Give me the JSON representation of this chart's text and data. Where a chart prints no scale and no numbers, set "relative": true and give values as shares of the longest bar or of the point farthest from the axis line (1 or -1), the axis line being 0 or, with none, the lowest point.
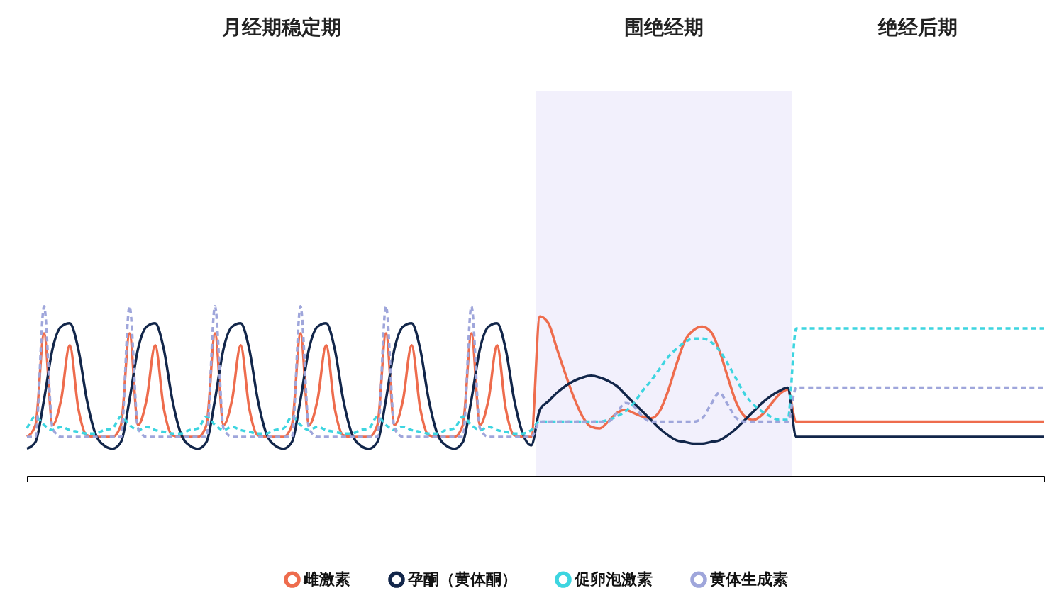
{
  "chart_data": {
    "type": "line",
    "relative": true,
    "grid": false,
    "tick_labels": false,
    "legend": "bottom",
    "annotations": [
      "月经期稳定期",
      "围绝经期",
      "绝经后期"
    ],
    "categories": [
      null,
      null,
      null,
      null,
      null,
      null,
      null,
      null,
      null,
      null,
      null,
      null,
      null,
      null,
      null,
      null,
      null,
      null,
      null,
      null,
      null,
      null,
      null,
      null,
      null,
      null,
      null,
      null,
      null,
      null,
      null,
      null,
      null,
      null,
      null,
      null,
      null,
      null,
      null,
      null,
      null,
      null,
      null,
      null,
      null,
      null,
      null,
      null,
      null,
      null,
      null,
      null,
      null,
      null,
      null,
      null,
      null,
      null,
      null,
      null,
      null,
      null,
      null,
      null,
      null,
      null,
      null,
      null,
      null,
      null,
      null,
      null,
      null,
      null,
      null,
      null,
      null,
      null,
      null,
      null,
      null,
      null,
      null,
      null,
      null,
      null,
      null,
      null,
      null,
      null,
      null,
      null,
      null,
      null,
      null,
      null,
      null,
      null,
      null,
      null,
      null,
      null,
      null,
      null,
      null,
      null,
      null,
      null,
      null,
      null,
      null,
      null,
      null,
      null,
      null,
      null,
      null,
      null,
      null,
      null
    ],
    "series": [
      {
        "name": "雌激素",
        "color": "#ee6c4d",
        "line_style": "solid",
        "values": [
          0.23,
          0.3,
          0.84,
          0.3,
          0.45,
          0.77,
          0.4,
          0.24,
          0.23,
          0.23,
          0.23,
          0.3,
          0.84,
          0.3,
          0.45,
          0.77,
          0.4,
          0.24,
          0.23,
          0.23,
          0.23,
          0.3,
          0.84,
          0.3,
          0.45,
          0.77,
          0.4,
          0.24,
          0.23,
          0.23,
          0.23,
          0.3,
          0.84,
          0.3,
          0.45,
          0.77,
          0.4,
          0.24,
          0.23,
          0.23,
          0.23,
          0.3,
          0.84,
          0.3,
          0.45,
          0.77,
          0.4,
          0.24,
          0.23,
          0.23,
          0.23,
          0.3,
          0.84,
          0.3,
          0.45,
          0.77,
          0.4,
          0.24,
          0.23,
          0.23,
          0.94,
          0.9,
          0.75,
          0.6,
          0.46,
          0.35,
          0.29,
          0.28,
          0.32,
          0.37,
          0.39,
          0.37,
          0.35,
          0.34,
          0.38,
          0.5,
          0.66,
          0.8,
          0.86,
          0.88,
          0.85,
          0.74,
          0.58,
          0.43,
          0.35,
          0.33,
          0.36,
          0.42,
          0.48,
          0.51,
          0.32,
          0.32,
          0.32,
          0.32,
          0.32,
          0.32,
          0.32,
          0.32,
          0.32,
          0.32,
          0.32,
          0.32,
          0.32,
          0.32,
          0.32,
          0.32,
          0.32,
          0.32,
          0.32,
          0.32,
          0.32,
          0.32,
          0.32,
          0.32,
          0.32,
          0.32,
          0.32,
          0.32,
          0.32,
          0.32
        ]
      },
      {
        "name": "孕酮（黄体酮）",
        "color": "#12264a",
        "line_style": "solid",
        "values": [
          0.16,
          0.2,
          0.45,
          0.75,
          0.88,
          0.9,
          0.75,
          0.45,
          0.25,
          0.18,
          0.16,
          0.2,
          0.45,
          0.75,
          0.88,
          0.9,
          0.75,
          0.45,
          0.25,
          0.18,
          0.16,
          0.2,
          0.45,
          0.75,
          0.88,
          0.9,
          0.75,
          0.45,
          0.25,
          0.18,
          0.16,
          0.2,
          0.45,
          0.75,
          0.88,
          0.9,
          0.75,
          0.45,
          0.25,
          0.18,
          0.16,
          0.2,
          0.45,
          0.75,
          0.88,
          0.9,
          0.75,
          0.45,
          0.25,
          0.18,
          0.16,
          0.2,
          0.45,
          0.75,
          0.88,
          0.9,
          0.75,
          0.45,
          0.25,
          0.18,
          0.39,
          0.44,
          0.49,
          0.53,
          0.56,
          0.58,
          0.59,
          0.58,
          0.56,
          0.53,
          0.48,
          0.43,
          0.38,
          0.33,
          0.28,
          0.24,
          0.21,
          0.2,
          0.19,
          0.19,
          0.2,
          0.21,
          0.24,
          0.28,
          0.33,
          0.38,
          0.43,
          0.47,
          0.5,
          0.52,
          0.23,
          0.23,
          0.23,
          0.23,
          0.23,
          0.23,
          0.23,
          0.23,
          0.23,
          0.23,
          0.23,
          0.23,
          0.23,
          0.23,
          0.23,
          0.23,
          0.23,
          0.23,
          0.23,
          0.23,
          0.23,
          0.23,
          0.23,
          0.23,
          0.23,
          0.23,
          0.23,
          0.23,
          0.23,
          0.23
        ]
      },
      {
        "name": "促卵泡激素",
        "color": "#3dd5e0",
        "line_style": "dashed",
        "values": [
          0.28,
          0.35,
          0.3,
          0.27,
          0.29,
          0.27,
          0.26,
          0.25,
          0.25,
          0.27,
          0.28,
          0.35,
          0.3,
          0.27,
          0.29,
          0.27,
          0.26,
          0.25,
          0.25,
          0.27,
          0.28,
          0.35,
          0.3,
          0.27,
          0.29,
          0.27,
          0.26,
          0.25,
          0.25,
          0.27,
          0.28,
          0.35,
          0.3,
          0.27,
          0.29,
          0.27,
          0.26,
          0.25,
          0.25,
          0.27,
          0.28,
          0.35,
          0.3,
          0.27,
          0.29,
          0.27,
          0.26,
          0.25,
          0.25,
          0.27,
          0.28,
          0.35,
          0.3,
          0.27,
          0.29,
          0.27,
          0.26,
          0.25,
          0.25,
          0.27,
          0.32,
          0.32,
          0.32,
          0.32,
          0.32,
          0.32,
          0.32,
          0.32,
          0.33,
          0.35,
          0.38,
          0.43,
          0.5,
          0.56,
          0.63,
          0.7,
          0.75,
          0.79,
          0.81,
          0.81,
          0.79,
          0.74,
          0.66,
          0.57,
          0.48,
          0.42,
          0.38,
          0.35,
          0.33,
          0.33,
          0.87,
          0.87,
          0.87,
          0.87,
          0.87,
          0.87,
          0.87,
          0.87,
          0.87,
          0.87,
          0.87,
          0.87,
          0.87,
          0.87,
          0.87,
          0.87,
          0.87,
          0.87,
          0.87,
          0.87,
          0.87,
          0.87,
          0.87,
          0.87,
          0.87,
          0.87,
          0.87,
          0.87,
          0.87,
          0.87
        ]
      },
      {
        "name": "黄体生成素",
        "color": "#9fa6db",
        "line_style": "dashed",
        "values": [
          0.23,
          0.23,
          1,
          0.28,
          0.23,
          0.23,
          0.23,
          0.23,
          0.23,
          0.23,
          0.23,
          0.23,
          1,
          0.28,
          0.23,
          0.23,
          0.23,
          0.23,
          0.23,
          0.23,
          0.23,
          0.23,
          1,
          0.28,
          0.23,
          0.23,
          0.23,
          0.23,
          0.23,
          0.23,
          0.23,
          0.23,
          1,
          0.28,
          0.23,
          0.23,
          0.23,
          0.23,
          0.23,
          0.23,
          0.23,
          0.23,
          1,
          0.28,
          0.23,
          0.23,
          0.23,
          0.23,
          0.23,
          0.23,
          0.23,
          0.23,
          1,
          0.28,
          0.23,
          0.23,
          0.23,
          0.23,
          0.23,
          0.23,
          0.32,
          0.32,
          0.32,
          0.32,
          0.32,
          0.32,
          0.32,
          0.32,
          0.32,
          0.37,
          0.43,
          0.41,
          0.35,
          0.32,
          0.32,
          0.32,
          0.32,
          0.32,
          0.32,
          0.34,
          0.42,
          0.49,
          0.42,
          0.34,
          0.32,
          0.32,
          0.32,
          0.32,
          0.32,
          0.32,
          0.52,
          0.52,
          0.52,
          0.52,
          0.52,
          0.52,
          0.52,
          0.52,
          0.52,
          0.52,
          0.52,
          0.52,
          0.52,
          0.52,
          0.52,
          0.52,
          0.52,
          0.52,
          0.52,
          0.52,
          0.52,
          0.52,
          0.52,
          0.52,
          0.52,
          0.52,
          0.52,
          0.52,
          0.52,
          0.52
        ]
      }
    ]
  }
}
